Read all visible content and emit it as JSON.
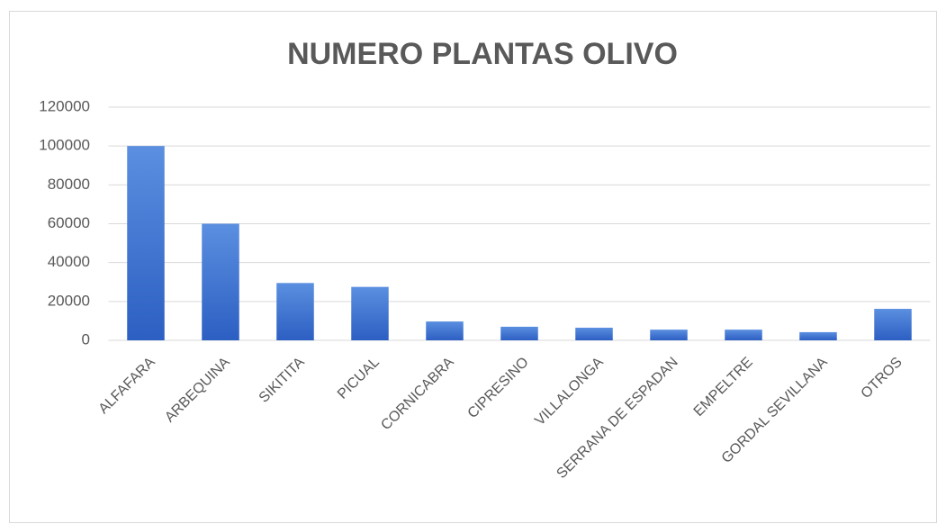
{
  "chart_data": {
    "type": "bar",
    "title": "NUMERO PLANTAS OLIVO",
    "categories": [
      "ALFAFARA",
      "ARBEQUINA",
      "SIKITITA",
      "PICUAL",
      "CORNICABRA",
      "CIPRESINO",
      "VILLALONGA",
      "SERRANA DE ESPADAN",
      "EMPELTRE",
      "GORDAL SEVILLANA",
      "OTROS"
    ],
    "values": [
      100000,
      60000,
      29500,
      27500,
      9700,
      7000,
      6500,
      5500,
      5500,
      4200,
      16200
    ],
    "color": "#4472c4",
    "ylim": [
      0,
      120000
    ],
    "yticks": [
      0,
      20000,
      40000,
      60000,
      80000,
      100000,
      120000
    ],
    "grid": true
  }
}
